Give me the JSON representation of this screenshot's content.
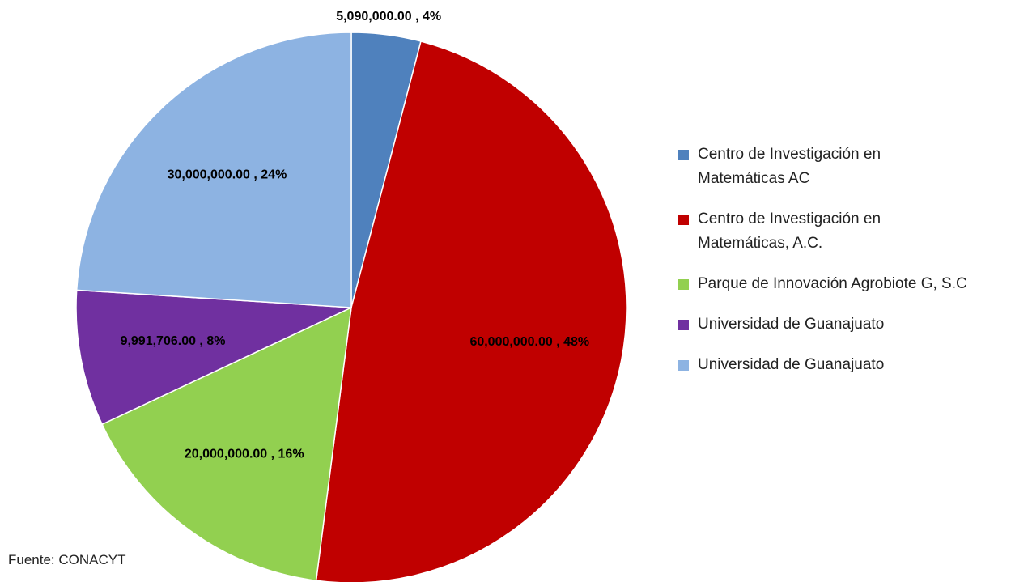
{
  "chart_data": {
    "type": "pie",
    "categories": [
      "Centro de Investigación en Matemáticas AC",
      "Centro de Investigación en Matemáticas, A.C.",
      "Parque de Innovación Agrobiote G, S.C",
      "Universidad de Guanajuato",
      "Universidad de Guanajuato"
    ],
    "values": [
      5090000,
      60000000,
      20000000,
      9991706,
      30000000
    ],
    "value_labels": [
      "5,090,000.00 , 4%",
      "60,000,000.00 , 48%",
      "20,000,000.00 , 16%",
      "9,991,706.00 , 8%",
      "30,000,000.00 , 24%"
    ],
    "colors": [
      "#4f81bd",
      "#c00000",
      "#92d050",
      "#7030a0",
      "#8db3e2"
    ],
    "legend": "right",
    "source": "Fuente: CONACYT"
  }
}
